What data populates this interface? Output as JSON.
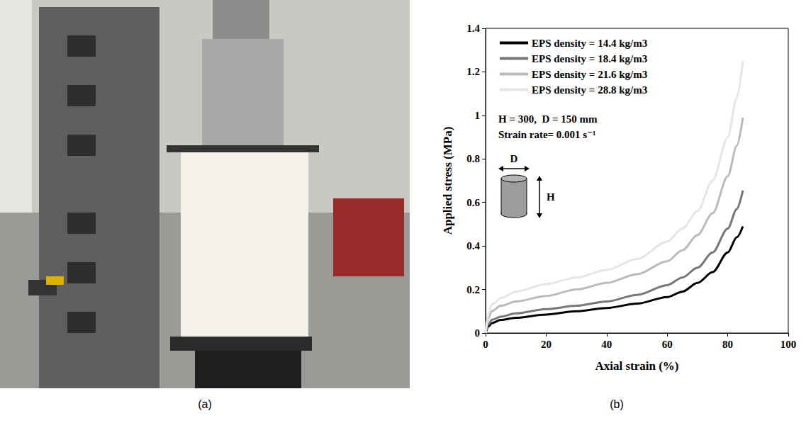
{
  "photo_panel": {
    "label": "(a)"
  },
  "chart_data": {
    "type": "line",
    "panel_label": "(b)",
    "x_label": "Axial strain (%)",
    "y_label": "Applied stress (MPa)",
    "annotations": [
      "H = 300,  D = 150 mm",
      "Strain rate= 0.001 s⁻¹"
    ],
    "inset_labels": [
      "D",
      "H"
    ],
    "x": [
      0,
      1,
      2,
      5,
      10,
      20,
      30,
      40,
      50,
      60,
      65,
      70,
      75,
      80,
      83,
      85
    ],
    "series": [
      {
        "name": "EPS density = 14.4 kg/m3",
        "color": "#000000",
        "values": [
          0,
          0.03,
          0.045,
          0.06,
          0.07,
          0.085,
          0.1,
          0.115,
          0.135,
          0.165,
          0.19,
          0.23,
          0.28,
          0.37,
          0.44,
          0.49
        ]
      },
      {
        "name": "EPS density = 18.4 kg/m3",
        "color": "#777777",
        "values": [
          0,
          0.04,
          0.06,
          0.075,
          0.09,
          0.11,
          0.125,
          0.145,
          0.175,
          0.22,
          0.255,
          0.3,
          0.37,
          0.48,
          0.57,
          0.655
        ]
      },
      {
        "name": "EPS density = 21.6 kg/m3",
        "color": "#bbbbbb",
        "values": [
          0,
          0.07,
          0.1,
          0.125,
          0.145,
          0.17,
          0.2,
          0.23,
          0.27,
          0.33,
          0.38,
          0.45,
          0.55,
          0.72,
          0.86,
          0.99
        ]
      },
      {
        "name": "EPS density = 28.8 kg/m3",
        "color": "#e6e6e6",
        "values": [
          0,
          0.09,
          0.13,
          0.16,
          0.19,
          0.225,
          0.255,
          0.29,
          0.34,
          0.42,
          0.48,
          0.56,
          0.7,
          0.9,
          1.08,
          1.25
        ]
      }
    ],
    "xlim": [
      0,
      100
    ],
    "xticks": [
      0,
      20,
      40,
      60,
      80,
      100
    ],
    "ylim": [
      0,
      1.4
    ],
    "yticks": [
      0,
      0.2,
      0.4,
      0.6,
      0.8,
      1,
      1.2,
      1.4
    ],
    "grid": false,
    "legend": "upper left",
    "marker": "none",
    "line_style": "solid"
  }
}
